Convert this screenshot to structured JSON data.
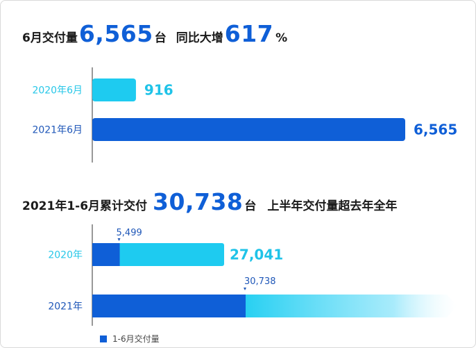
{
  "headline1": {
    "prefix": "6月交付量",
    "value": "6,565",
    "unit": "台",
    "mid": "同比大增",
    "pct_value": "617",
    "pct_sign": "%"
  },
  "headline2": {
    "prefix": "2021年1-6月累计交付",
    "value": "30,738",
    "unit": "台",
    "suffix": "上半年交付量超去年全年"
  },
  "legend": {
    "label": "1-6月交付量"
  },
  "colors": {
    "cyan": "#1ecbf0",
    "blue": "#0f5fd7",
    "label_light": "#27c7e8",
    "label_dark": "#1f57b8"
  },
  "chart_data": [
    {
      "type": "bar",
      "orientation": "horizontal",
      "categories": [
        "2020年6月",
        "2021年6月"
      ],
      "values": [
        916,
        6565
      ],
      "value_labels": [
        "916",
        "6,565"
      ],
      "xlim": [
        0,
        6565
      ]
    },
    {
      "type": "bar",
      "orientation": "horizontal",
      "categories": [
        "2020年",
        "2021年"
      ],
      "series": [
        {
          "name": "1-6月交付量",
          "values": [
            5499,
            30738
          ],
          "value_labels": [
            "5,499",
            "30,738"
          ]
        },
        {
          "values": [
            27041,
            null
          ],
          "value_labels": [
            "27,041",
            ""
          ]
        }
      ],
      "xlim": [
        0,
        30738
      ]
    }
  ]
}
